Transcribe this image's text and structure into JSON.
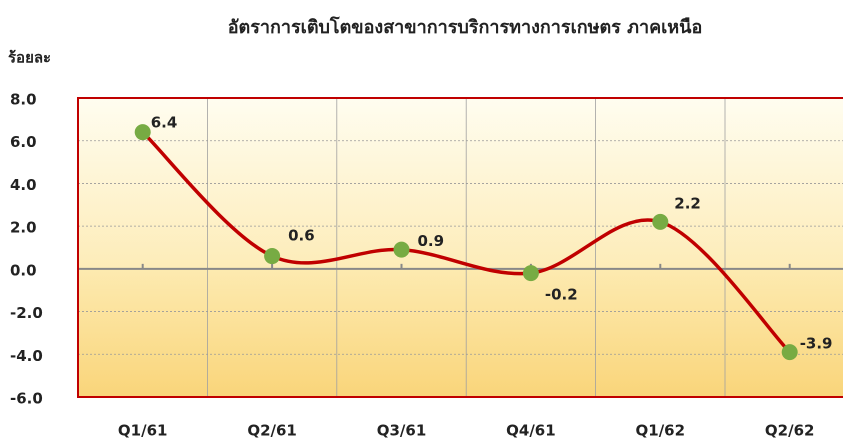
{
  "chart_data": {
    "type": "line",
    "title": "อัตราการเติบโตของสาขาการบริการทางการเกษตร ภาคเหนือ",
    "y_label": "ร้อยละ",
    "categories": [
      "Q1/61",
      "Q2/61",
      "Q3/61",
      "Q4/61",
      "Q1/62",
      "Q2/62"
    ],
    "series": [
      {
        "name": "อัตราการเติบโต",
        "color": "#c00000",
        "marker_color": "#77ab43",
        "values": [
          6.4,
          0.6,
          0.9,
          -0.2,
          2.2,
          -3.9
        ]
      }
    ],
    "ylim": [
      -6,
      8
    ],
    "yticks": [
      {
        "value": -6,
        "label": "-6.0"
      },
      {
        "value": -4,
        "label": "-4.0"
      },
      {
        "value": -2,
        "label": "-2.0"
      },
      {
        "value": 0,
        "label": "0.0"
      },
      {
        "value": 2,
        "label": "2.0"
      },
      {
        "value": 4,
        "label": "4.0"
      },
      {
        "value": 6,
        "label": "6.0"
      },
      {
        "value": 8,
        "label": "8.0"
      }
    ],
    "grid": true
  }
}
